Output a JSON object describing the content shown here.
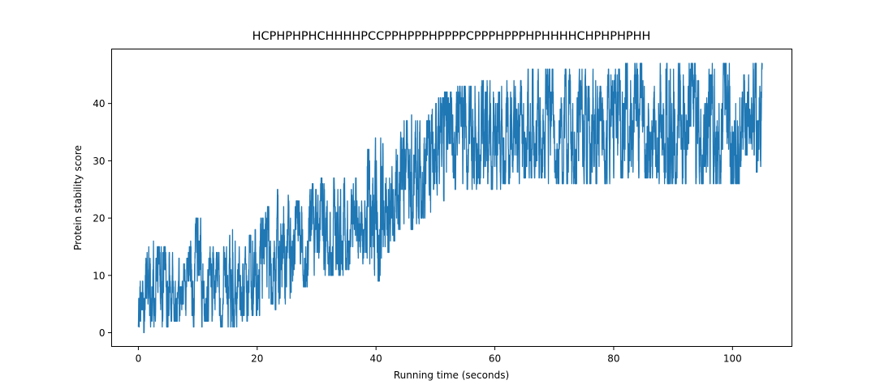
{
  "chart_data": {
    "type": "line",
    "title": "HCPHPHPHCHHHHPCCPPHPPPHPPPPCPPPHPPPHPHHHHCHPHPHPHH",
    "xlabel": "Running time (seconds)",
    "ylabel": "Protein stability score",
    "xlim": [
      -4.5,
      110
    ],
    "ylim": [
      -2.4,
      49.5
    ],
    "xticks": [
      0,
      20,
      40,
      60,
      80,
      100
    ],
    "yticks": [
      0,
      10,
      20,
      30,
      40
    ],
    "grid": false,
    "series": [
      {
        "color": "#1f77b4",
        "envelope": {
          "x": [
            0,
            2,
            4,
            6,
            8,
            10,
            12,
            14,
            16,
            18,
            20,
            22,
            24,
            26,
            28,
            30,
            32,
            34,
            36,
            38,
            40,
            42,
            44,
            46,
            48,
            50,
            52,
            54,
            56,
            58,
            60,
            62,
            64,
            66,
            68,
            70,
            75,
            80,
            82,
            85,
            90,
            95,
            100,
            105
          ],
          "low": [
            0,
            1,
            1,
            2,
            1,
            1,
            2,
            1,
            1,
            2,
            3,
            5,
            4,
            7,
            8,
            9,
            10,
            10,
            12,
            12,
            7,
            14,
            18,
            18,
            20,
            22,
            24,
            26,
            25,
            26,
            25,
            26,
            26,
            27,
            27,
            26,
            26,
            26,
            27,
            27,
            26,
            26,
            26,
            27
          ],
          "high": [
            13,
            16,
            15,
            14,
            12,
            21,
            15,
            14,
            18,
            16,
            19,
            22,
            26,
            22,
            24,
            27,
            27,
            28,
            25,
            31,
            34,
            33,
            36,
            38,
            36,
            40,
            42,
            43,
            43,
            44,
            45,
            44,
            44,
            46,
            46,
            46,
            46,
            46,
            47,
            47,
            47,
            47,
            47,
            47
          ]
        }
      }
    ]
  }
}
